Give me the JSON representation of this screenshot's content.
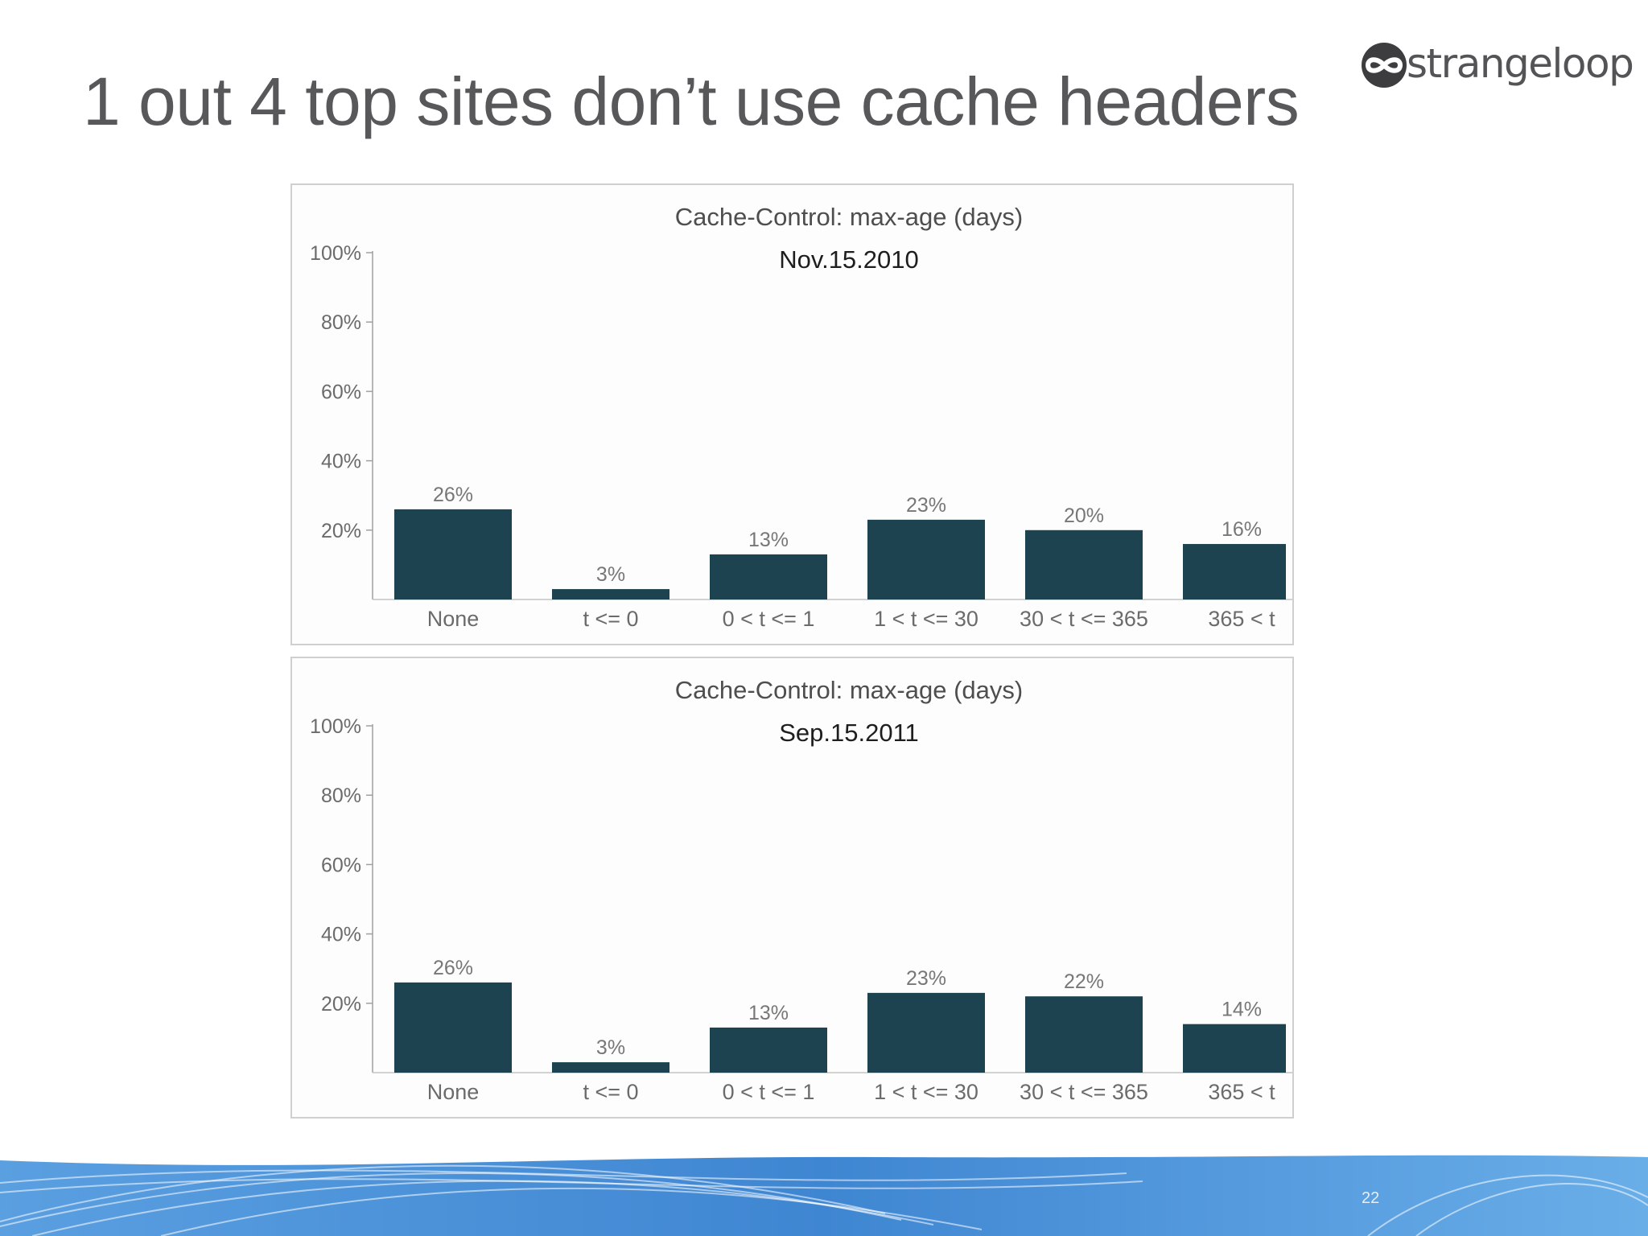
{
  "slide": {
    "title": "1 out 4 top sites don’t use cache headers",
    "logo_text": "strangeloop",
    "page_number": "22"
  },
  "colors": {
    "bar": "#1d4350",
    "text": "#58585a",
    "axis": "#9a9a9a",
    "footer_blue": "#4a90d8"
  },
  "chart_data": [
    {
      "type": "bar",
      "title": "Cache-Control: max-age (days)",
      "subtitle": "Nov.15.2010",
      "categories": [
        "None",
        "t <= 0",
        "0 < t <= 1",
        "1 < t <= 30",
        "30 < t <= 365",
        "365 < t"
      ],
      "values": [
        26,
        3,
        13,
        23,
        20,
        16
      ],
      "value_labels": [
        "26%",
        "3%",
        "13%",
        "23%",
        "20%",
        "16%"
      ],
      "yticks": [
        "20%",
        "40%",
        "60%",
        "80%",
        "100%"
      ],
      "ylim": [
        0,
        100
      ],
      "grid": false
    },
    {
      "type": "bar",
      "title": "Cache-Control: max-age (days)",
      "subtitle": "Sep.15.2011",
      "categories": [
        "None",
        "t <= 0",
        "0 < t <= 1",
        "1 < t <= 30",
        "30 < t <= 365",
        "365 < t"
      ],
      "values": [
        26,
        3,
        13,
        23,
        22,
        14
      ],
      "value_labels": [
        "26%",
        "3%",
        "13%",
        "23%",
        "22%",
        "14%"
      ],
      "yticks": [
        "20%",
        "40%",
        "60%",
        "80%",
        "100%"
      ],
      "ylim": [
        0,
        100
      ],
      "grid": false
    }
  ]
}
